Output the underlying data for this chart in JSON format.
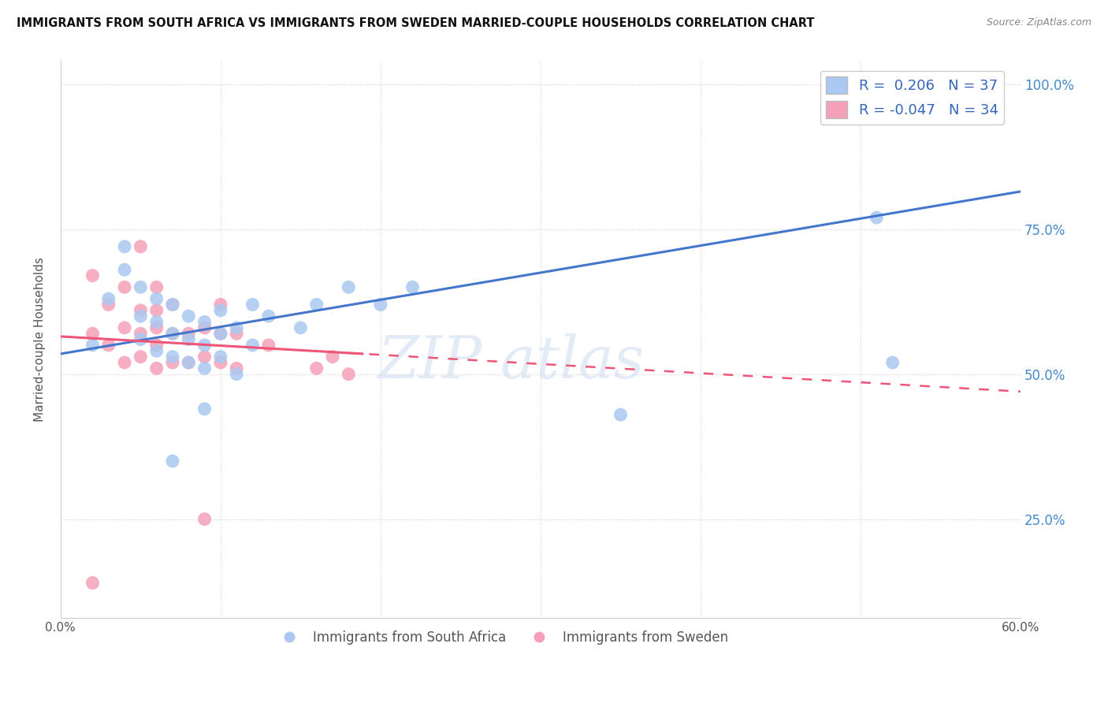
{
  "title": "IMMIGRANTS FROM SOUTH AFRICA VS IMMIGRANTS FROM SWEDEN MARRIED-COUPLE HOUSEHOLDS CORRELATION CHART",
  "source": "Source: ZipAtlas.com",
  "ylabel": "Married-couple Households",
  "xlim": [
    0.0,
    0.6
  ],
  "ylim": [
    0.08,
    1.04
  ],
  "x_ticks": [
    0.0,
    0.1,
    0.2,
    0.3,
    0.4,
    0.5,
    0.6
  ],
  "x_tick_labels": [
    "0.0%",
    "",
    "",
    "",
    "",
    "",
    "60.0%"
  ],
  "y_ticks": [
    0.25,
    0.5,
    0.75,
    1.0
  ],
  "y_tick_labels": [
    "25.0%",
    "50.0%",
    "75.0%",
    "100.0%"
  ],
  "blue_R": 0.206,
  "blue_N": 37,
  "pink_R": -0.047,
  "pink_N": 34,
  "blue_color": "#aac8f0",
  "pink_color": "#f5a0b8",
  "blue_line_color": "#4477cc",
  "pink_line_color": "#ee5577",
  "legend_label_blue": "Immigrants from South Africa",
  "legend_label_pink": "Immigrants from Sweden",
  "blue_x": [
    0.02,
    0.03,
    0.04,
    0.04,
    0.05,
    0.05,
    0.05,
    0.06,
    0.06,
    0.06,
    0.07,
    0.07,
    0.07,
    0.08,
    0.08,
    0.08,
    0.09,
    0.09,
    0.09,
    0.1,
    0.1,
    0.1,
    0.11,
    0.11,
    0.12,
    0.12,
    0.13,
    0.15,
    0.16,
    0.18,
    0.2,
    0.22,
    0.35,
    0.51,
    0.52,
    0.07,
    0.09
  ],
  "blue_y": [
    0.55,
    0.63,
    0.68,
    0.72,
    0.56,
    0.6,
    0.65,
    0.54,
    0.59,
    0.63,
    0.53,
    0.57,
    0.62,
    0.52,
    0.56,
    0.6,
    0.51,
    0.55,
    0.59,
    0.53,
    0.57,
    0.61,
    0.5,
    0.58,
    0.55,
    0.62,
    0.6,
    0.58,
    0.62,
    0.65,
    0.62,
    0.65,
    0.43,
    0.77,
    0.52,
    0.35,
    0.44
  ],
  "pink_x": [
    0.02,
    0.02,
    0.03,
    0.03,
    0.04,
    0.04,
    0.04,
    0.05,
    0.05,
    0.05,
    0.05,
    0.06,
    0.06,
    0.06,
    0.06,
    0.06,
    0.07,
    0.07,
    0.07,
    0.08,
    0.08,
    0.09,
    0.09,
    0.1,
    0.1,
    0.1,
    0.11,
    0.11,
    0.13,
    0.16,
    0.17,
    0.18,
    0.02,
    0.09
  ],
  "pink_y": [
    0.57,
    0.67,
    0.55,
    0.62,
    0.52,
    0.58,
    0.65,
    0.53,
    0.57,
    0.61,
    0.72,
    0.51,
    0.55,
    0.58,
    0.61,
    0.65,
    0.52,
    0.57,
    0.62,
    0.52,
    0.57,
    0.53,
    0.58,
    0.52,
    0.57,
    0.62,
    0.51,
    0.57,
    0.55,
    0.51,
    0.53,
    0.5,
    0.14,
    0.25
  ]
}
